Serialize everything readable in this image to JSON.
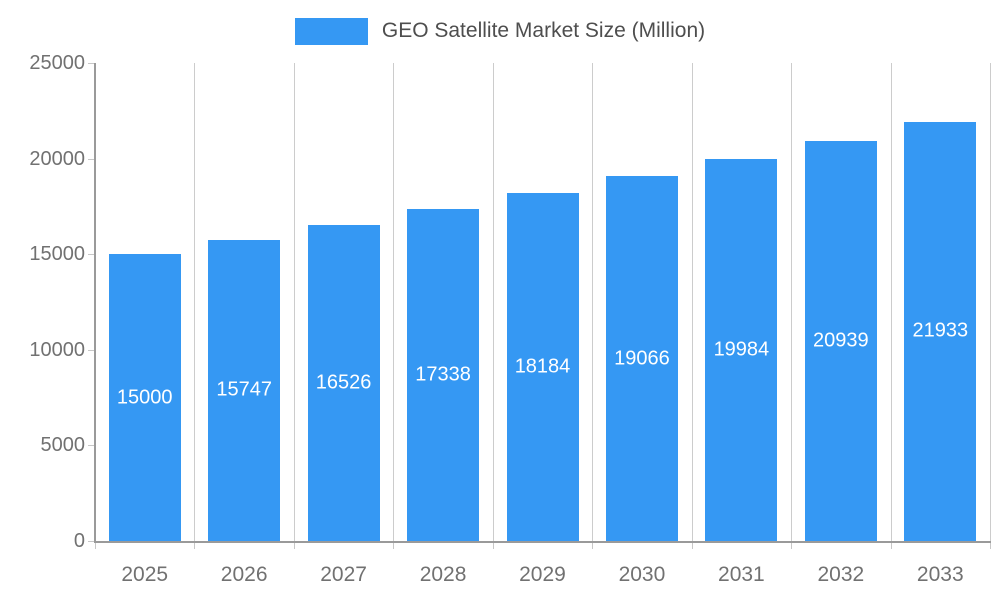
{
  "chart_data": {
    "type": "bar",
    "title": "GEO Satellite Market Size (Million)",
    "categories": [
      "2025",
      "2026",
      "2027",
      "2028",
      "2029",
      "2030",
      "2031",
      "2032",
      "2033"
    ],
    "values": [
      15000,
      15747,
      16526,
      17338,
      18184,
      19066,
      19984,
      20939,
      21933
    ],
    "value_labels": [
      "15000",
      "15747",
      "16526",
      "17338",
      "18184",
      "19066",
      "19984",
      "20939",
      "21933"
    ],
    "xlabel": "",
    "ylabel": "",
    "ylim": [
      0,
      25000
    ],
    "y_ticks": [
      0,
      5000,
      10000,
      15000,
      20000,
      25000
    ],
    "y_tick_labels": [
      "0",
      "5000",
      "10000",
      "15000",
      "20000",
      "25000"
    ],
    "grid": "vertical-only",
    "legend_position": "top-center",
    "colors": {
      "bar": "#3598f3",
      "value_label": "#ffffff",
      "tick_label": "#717171",
      "legend_label": "#4e4e4e",
      "axis_line": "#9a9a9a",
      "gridline": "#cccccc",
      "background": "#ffffff"
    }
  }
}
